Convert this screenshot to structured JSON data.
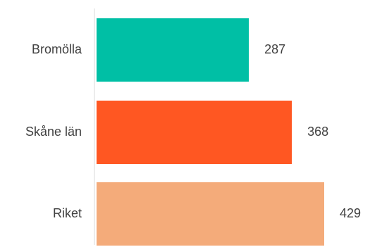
{
  "chart_data": {
    "type": "bar",
    "orientation": "horizontal",
    "categories": [
      "Bromölla",
      "Skåne län",
      "Riket"
    ],
    "values": [
      287,
      368,
      429
    ],
    "colors": [
      "#00bfa5",
      "#ff5722",
      "#f4ab7a"
    ],
    "value_labels": [
      "287",
      "368",
      "429"
    ],
    "title": "",
    "xlabel": "",
    "ylabel": "",
    "xlim": [
      0,
      429
    ],
    "grid": false,
    "legend": "none"
  }
}
